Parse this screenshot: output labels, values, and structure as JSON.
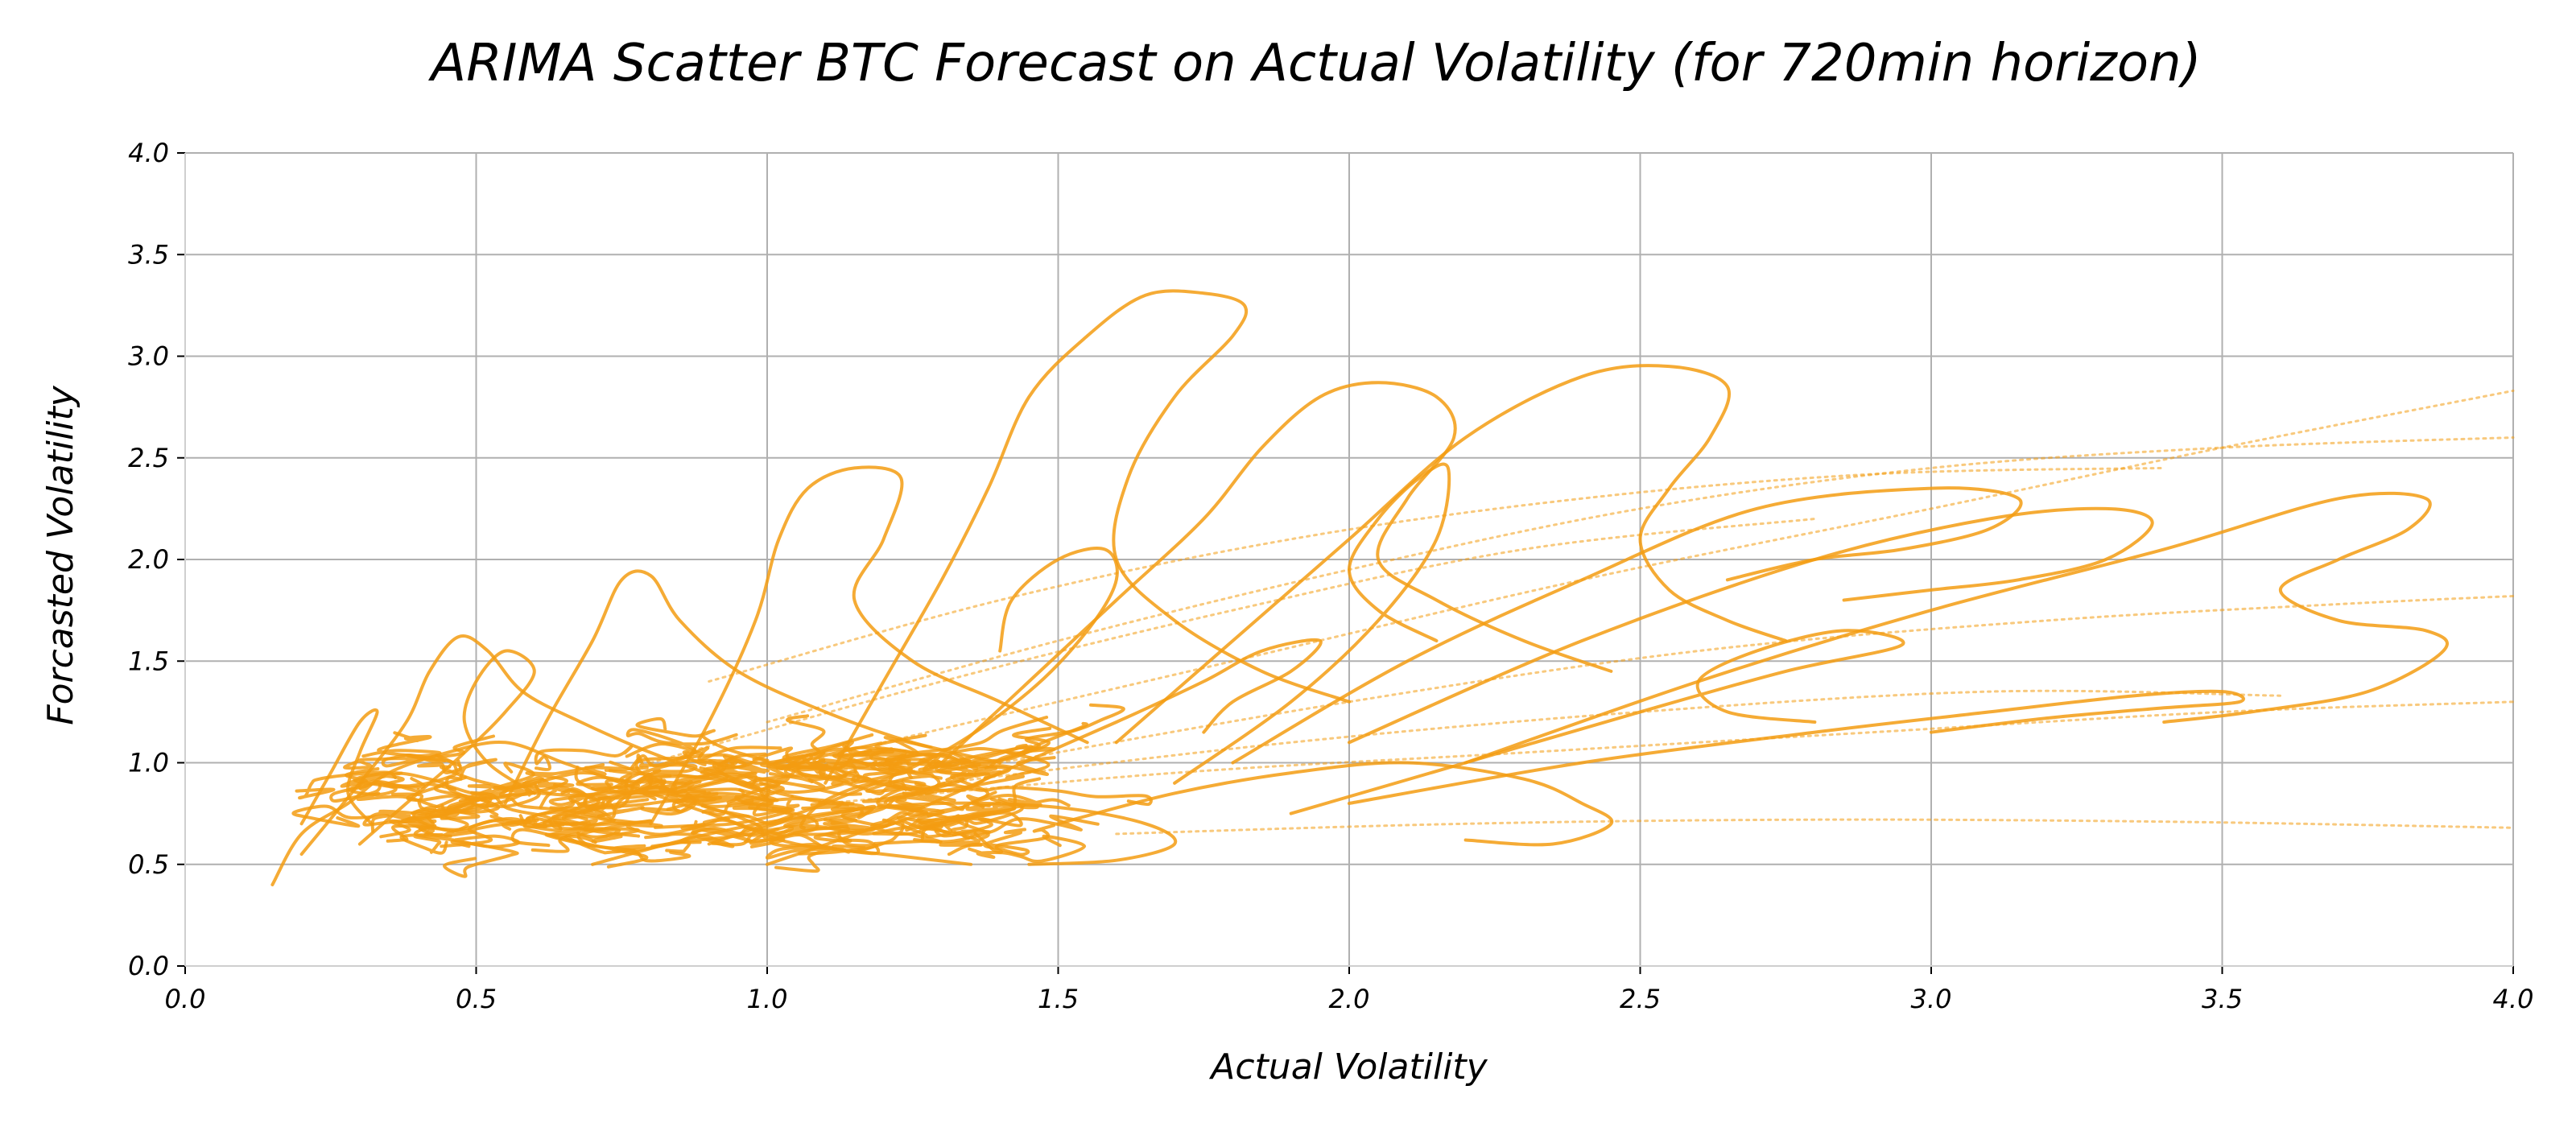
{
  "chart_data": {
    "type": "scatter",
    "title": "ARIMA Scatter BTC Forecast on Actual Volatility (for 720min horizon)",
    "xlabel": "Actual Volatility",
    "ylabel": "Forcasted Volatility",
    "xlim": [
      0.0,
      4.0
    ],
    "ylim": [
      0.0,
      4.0
    ],
    "xticks": [
      "0.0",
      "0.5",
      "1.0",
      "1.5",
      "2.0",
      "2.5",
      "3.0",
      "3.5",
      "4.0"
    ],
    "yticks": [
      "0.0",
      "0.5",
      "1.0",
      "1.5",
      "2.0",
      "2.5",
      "3.0",
      "3.5",
      "4.0"
    ],
    "grid": true,
    "color": "#f39c12",
    "series": [
      {
        "style": "solid",
        "points": [
          [
            0.15,
            0.4
          ],
          [
            0.2,
            0.65
          ],
          [
            0.28,
            0.8
          ],
          [
            0.35,
            0.95
          ],
          [
            0.45,
            1.05
          ],
          [
            0.55,
            1.1
          ],
          [
            0.65,
            1.0
          ],
          [
            0.75,
            0.9
          ],
          [
            0.85,
            0.8
          ],
          [
            0.95,
            0.7
          ],
          [
            1.05,
            0.6
          ],
          [
            1.2,
            0.55
          ],
          [
            1.35,
            0.5
          ]
        ]
      },
      {
        "style": "solid",
        "points": [
          [
            0.2,
            0.55
          ],
          [
            0.3,
            0.9
          ],
          [
            0.38,
            1.2
          ],
          [
            0.42,
            1.45
          ],
          [
            0.47,
            1.62
          ],
          [
            0.52,
            1.55
          ],
          [
            0.58,
            1.35
          ],
          [
            0.68,
            1.2
          ],
          [
            0.8,
            1.05
          ],
          [
            0.95,
            0.9
          ],
          [
            1.1,
            0.8
          ]
        ]
      },
      {
        "style": "solid",
        "points": [
          [
            0.55,
            0.8
          ],
          [
            0.62,
            1.2
          ],
          [
            0.7,
            1.6
          ],
          [
            0.75,
            1.9
          ],
          [
            0.8,
            1.92
          ],
          [
            0.85,
            1.7
          ],
          [
            0.95,
            1.45
          ],
          [
            1.1,
            1.25
          ],
          [
            1.25,
            1.1
          ],
          [
            1.4,
            1.0
          ]
        ]
      },
      {
        "style": "solid",
        "points": [
          [
            0.8,
            0.7
          ],
          [
            0.9,
            1.2
          ],
          [
            0.98,
            1.7
          ],
          [
            1.02,
            2.1
          ],
          [
            1.07,
            2.35
          ],
          [
            1.15,
            2.45
          ],
          [
            1.23,
            2.4
          ],
          [
            1.2,
            2.1
          ],
          [
            1.15,
            1.8
          ],
          [
            1.25,
            1.5
          ],
          [
            1.4,
            1.3
          ],
          [
            1.55,
            1.1
          ]
        ]
      },
      {
        "style": "solid",
        "points": [
          [
            1.1,
            0.9
          ],
          [
            1.2,
            1.4
          ],
          [
            1.3,
            1.9
          ],
          [
            1.38,
            2.35
          ],
          [
            1.45,
            2.8
          ],
          [
            1.55,
            3.1
          ],
          [
            1.65,
            3.3
          ],
          [
            1.75,
            3.31
          ],
          [
            1.82,
            3.25
          ],
          [
            1.8,
            3.1
          ],
          [
            1.7,
            2.8
          ],
          [
            1.62,
            2.4
          ],
          [
            1.6,
            2.0
          ],
          [
            1.7,
            1.7
          ],
          [
            1.85,
            1.45
          ],
          [
            2.0,
            1.3
          ]
        ]
      },
      {
        "style": "solid",
        "points": [
          [
            1.3,
            1.0
          ],
          [
            1.45,
            1.4
          ],
          [
            1.6,
            1.8
          ],
          [
            1.75,
            2.2
          ],
          [
            1.85,
            2.55
          ],
          [
            1.95,
            2.8
          ],
          [
            2.05,
            2.87
          ],
          [
            2.15,
            2.8
          ],
          [
            2.18,
            2.6
          ],
          [
            2.1,
            2.3
          ],
          [
            2.05,
            2.0
          ],
          [
            2.15,
            1.8
          ],
          [
            2.3,
            1.6
          ],
          [
            2.45,
            1.45
          ]
        ]
      },
      {
        "style": "solid",
        "points": [
          [
            1.6,
            1.1
          ],
          [
            1.8,
            1.6
          ],
          [
            2.0,
            2.1
          ],
          [
            2.2,
            2.6
          ],
          [
            2.4,
            2.9
          ],
          [
            2.55,
            2.95
          ],
          [
            2.65,
            2.85
          ],
          [
            2.62,
            2.6
          ],
          [
            2.55,
            2.35
          ],
          [
            2.5,
            2.1
          ],
          [
            2.55,
            1.85
          ],
          [
            2.65,
            1.7
          ],
          [
            2.75,
            1.6
          ]
        ]
      },
      {
        "style": "solid",
        "points": [
          [
            1.7,
            0.9
          ],
          [
            1.9,
            1.3
          ],
          [
            2.05,
            1.7
          ],
          [
            2.15,
            2.1
          ],
          [
            2.17,
            2.45
          ],
          [
            2.12,
            2.4
          ],
          [
            2.05,
            2.2
          ],
          [
            2.0,
            1.95
          ],
          [
            2.05,
            1.75
          ],
          [
            2.15,
            1.6
          ]
        ]
      },
      {
        "style": "solid",
        "points": [
          [
            1.8,
            1.0
          ],
          [
            2.1,
            1.5
          ],
          [
            2.4,
            1.9
          ],
          [
            2.7,
            2.25
          ],
          [
            3.0,
            2.35
          ],
          [
            3.15,
            2.3
          ],
          [
            3.1,
            2.15
          ],
          [
            2.95,
            2.05
          ],
          [
            2.8,
            2.0
          ],
          [
            2.65,
            1.9
          ]
        ]
      },
      {
        "style": "solid",
        "points": [
          [
            2.0,
            1.1
          ],
          [
            2.4,
            1.6
          ],
          [
            2.8,
            2.0
          ],
          [
            3.1,
            2.2
          ],
          [
            3.3,
            2.25
          ],
          [
            3.38,
            2.18
          ],
          [
            3.3,
            2.0
          ],
          [
            3.15,
            1.9
          ],
          [
            3.0,
            1.85
          ],
          [
            2.85,
            1.8
          ]
        ]
      },
      {
        "style": "solid",
        "points": [
          [
            2.2,
            1.0
          ],
          [
            2.6,
            1.4
          ],
          [
            3.0,
            1.75
          ],
          [
            3.4,
            2.05
          ],
          [
            3.7,
            2.3
          ],
          [
            3.85,
            2.3
          ],
          [
            3.82,
            2.15
          ],
          [
            3.7,
            2.0
          ],
          [
            3.6,
            1.85
          ],
          [
            3.7,
            1.7
          ],
          [
            3.85,
            1.65
          ],
          [
            3.88,
            1.55
          ],
          [
            3.75,
            1.35
          ],
          [
            3.55,
            1.25
          ],
          [
            3.4,
            1.2
          ]
        ]
      },
      {
        "style": "solid",
        "points": [
          [
            2.0,
            0.8
          ],
          [
            2.4,
            1.0
          ],
          [
            2.8,
            1.15
          ],
          [
            3.1,
            1.25
          ],
          [
            3.35,
            1.33
          ],
          [
            3.5,
            1.35
          ],
          [
            3.53,
            1.3
          ],
          [
            3.4,
            1.27
          ],
          [
            3.2,
            1.22
          ],
          [
            3.0,
            1.15
          ]
        ]
      },
      {
        "style": "solid",
        "points": [
          [
            1.9,
            0.75
          ],
          [
            2.2,
            1.0
          ],
          [
            2.5,
            1.25
          ],
          [
            2.75,
            1.45
          ],
          [
            2.95,
            1.58
          ],
          [
            2.85,
            1.65
          ],
          [
            2.7,
            1.55
          ],
          [
            2.6,
            1.4
          ],
          [
            2.65,
            1.25
          ],
          [
            2.8,
            1.2
          ]
        ]
      },
      {
        "style": "solid",
        "points": [
          [
            1.5,
            0.7
          ],
          [
            1.7,
            0.85
          ],
          [
            1.9,
            0.95
          ],
          [
            2.1,
            1.0
          ],
          [
            2.3,
            0.92
          ],
          [
            2.4,
            0.8
          ],
          [
            2.45,
            0.7
          ],
          [
            2.35,
            0.6
          ],
          [
            2.2,
            0.62
          ]
        ]
      },
      {
        "style": "solid",
        "points": [
          [
            0.9,
            0.6
          ],
          [
            1.1,
            0.8
          ],
          [
            1.3,
            1.05
          ],
          [
            1.45,
            1.35
          ],
          [
            1.55,
            1.65
          ],
          [
            1.6,
            1.9
          ],
          [
            1.58,
            2.05
          ],
          [
            1.5,
            2.0
          ],
          [
            1.42,
            1.8
          ],
          [
            1.4,
            1.55
          ]
        ]
      },
      {
        "style": "solid",
        "points": [
          [
            0.3,
            0.6
          ],
          [
            0.4,
            0.85
          ],
          [
            0.48,
            1.05
          ],
          [
            0.55,
            1.25
          ],
          [
            0.6,
            1.45
          ],
          [
            0.55,
            1.55
          ],
          [
            0.5,
            1.4
          ],
          [
            0.48,
            1.2
          ],
          [
            0.52,
            1.0
          ],
          [
            0.6,
            0.85
          ]
        ]
      },
      {
        "style": "solid",
        "points": [
          [
            0.2,
            0.7
          ],
          [
            0.25,
            0.95
          ],
          [
            0.3,
            1.2
          ],
          [
            0.33,
            1.25
          ],
          [
            0.3,
            1.05
          ],
          [
            0.28,
            0.85
          ],
          [
            0.32,
            0.7
          ]
        ]
      },
      {
        "style": "solid",
        "points": [
          [
            1.0,
            0.5
          ],
          [
            1.2,
            0.7
          ],
          [
            1.4,
            0.95
          ],
          [
            1.6,
            1.2
          ],
          [
            1.75,
            1.4
          ],
          [
            1.85,
            1.55
          ],
          [
            1.95,
            1.6
          ],
          [
            1.9,
            1.45
          ],
          [
            1.8,
            1.3
          ],
          [
            1.75,
            1.15
          ]
        ]
      },
      {
        "style": "solid",
        "points": [
          [
            0.7,
            0.5
          ],
          [
            0.9,
            0.65
          ],
          [
            1.1,
            0.75
          ],
          [
            1.3,
            0.8
          ],
          [
            1.5,
            0.78
          ],
          [
            1.65,
            0.7
          ],
          [
            1.7,
            0.6
          ],
          [
            1.6,
            0.52
          ],
          [
            1.45,
            0.5
          ]
        ]
      },
      {
        "style": "dotted",
        "points": [
          [
            1.0,
            1.2
          ],
          [
            1.5,
            1.6
          ],
          [
            2.0,
            1.95
          ],
          [
            2.5,
            2.25
          ],
          [
            3.0,
            2.45
          ],
          [
            3.5,
            2.55
          ],
          [
            4.0,
            2.6
          ]
        ]
      },
      {
        "style": "dotted",
        "points": [
          [
            1.2,
            1.1
          ],
          [
            1.8,
            1.5
          ],
          [
            2.4,
            1.9
          ],
          [
            3.0,
            2.25
          ],
          [
            3.5,
            2.55
          ],
          [
            4.0,
            2.83
          ]
        ]
      },
      {
        "style": "dotted",
        "points": [
          [
            1.1,
            0.8
          ],
          [
            1.7,
            0.95
          ],
          [
            2.3,
            1.05
          ],
          [
            2.9,
            1.15
          ],
          [
            3.5,
            1.25
          ],
          [
            4.0,
            1.3
          ]
        ]
      },
      {
        "style": "dotted",
        "points": [
          [
            1.4,
            1.0
          ],
          [
            2.0,
            1.3
          ],
          [
            2.6,
            1.55
          ],
          [
            3.2,
            1.7
          ],
          [
            3.7,
            1.78
          ],
          [
            4.0,
            1.82
          ]
        ]
      },
      {
        "style": "dotted",
        "points": [
          [
            1.6,
            0.65
          ],
          [
            2.2,
            0.7
          ],
          [
            2.8,
            0.72
          ],
          [
            3.4,
            0.71
          ],
          [
            4.0,
            0.68
          ]
        ]
      },
      {
        "style": "dotted",
        "points": [
          [
            0.9,
            1.4
          ],
          [
            1.4,
            1.8
          ],
          [
            1.9,
            2.1
          ],
          [
            2.4,
            2.3
          ],
          [
            2.9,
            2.42
          ],
          [
            3.4,
            2.45
          ]
        ]
      },
      {
        "style": "dotted",
        "points": [
          [
            1.3,
            0.9
          ],
          [
            1.9,
            1.1
          ],
          [
            2.5,
            1.25
          ],
          [
            3.1,
            1.35
          ],
          [
            3.6,
            1.33
          ]
        ]
      },
      {
        "style": "dotted",
        "points": [
          [
            0.8,
            1.0
          ],
          [
            1.3,
            1.4
          ],
          [
            1.8,
            1.75
          ],
          [
            2.3,
            2.05
          ],
          [
            2.8,
            2.2
          ]
        ]
      }
    ],
    "dense_cluster": {
      "x_center": 0.85,
      "y_center": 0.8,
      "x_spread": 0.55,
      "y_spread": 0.25
    }
  }
}
